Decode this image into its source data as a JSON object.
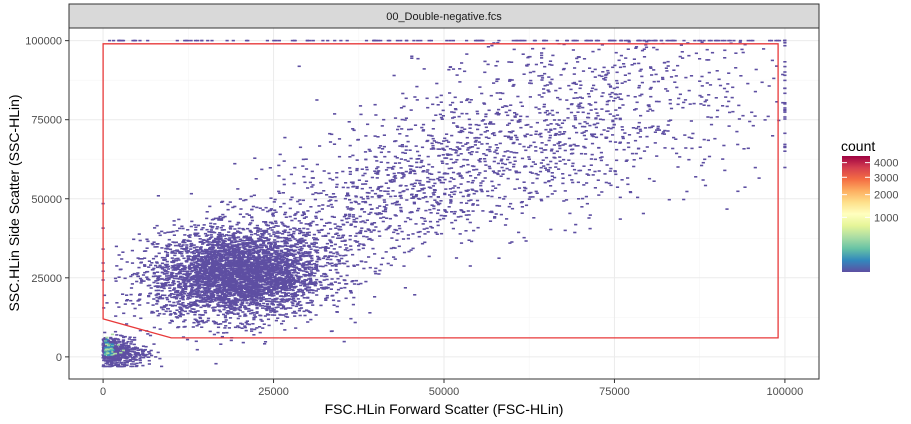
{
  "chart_data": {
    "type": "heatmap",
    "panel_title": "00_Double-negative.fcs",
    "xlabel": "FSC.HLin Forward Scatter (FSC-HLin)",
    "ylabel": "SSC.HLin Side Scatter (SSC-HLin)",
    "xlim": [
      -5000,
      105000
    ],
    "ylim": [
      -7000,
      104000
    ],
    "x_ticks": [
      0,
      25000,
      50000,
      75000,
      100000
    ],
    "x_tick_labels": [
      "0",
      "25000",
      "50000",
      "75000",
      "100000"
    ],
    "y_ticks": [
      0,
      25000,
      50000,
      75000,
      100000
    ],
    "y_tick_labels": [
      "0",
      "25000",
      "50000",
      "75000",
      "100000"
    ],
    "grid": true,
    "legend": {
      "title": "count",
      "position": "right",
      "breaks": [
        1000,
        2000,
        3000,
        4000
      ],
      "break_labels": [
        "1000",
        "2000",
        "3000",
        "4000"
      ],
      "min": 1,
      "max": 4500,
      "colors": [
        "#5e4fa2",
        "#3288bd",
        "#66c2a5",
        "#abdda4",
        "#e6f598",
        "#ffffbf",
        "#fee08b",
        "#fdae61",
        "#f46d43",
        "#d53e4f",
        "#9e0142"
      ]
    },
    "gate": {
      "color": "#e8393a",
      "vertices": [
        [
          0,
          99000
        ],
        [
          99000,
          99000
        ],
        [
          99000,
          6000
        ],
        [
          10000,
          6000
        ],
        [
          0,
          12000
        ]
      ]
    },
    "density": {
      "main_cluster": {
        "center": [
          20000,
          26000
        ],
        "spread": [
          6000,
          7000
        ],
        "count": 3600
      },
      "diagonal_trend": {
        "from": [
          8000,
          18000
        ],
        "to": [
          85000,
          90000
        ],
        "width": 9000,
        "count": 2600
      },
      "origin_cluster": {
        "center": [
          1500,
          1500
        ],
        "spread": [
          2500,
          2500
        ],
        "count": 500
      },
      "saturation_row": {
        "y": 100000,
        "x_range": [
          0,
          100000
        ],
        "count": 110
      }
    },
    "colors": {
      "panel_strip_bg": "#d9d9d9",
      "grid_major": "#ebebeb",
      "grid_minor": "#f5f5f5",
      "frame": "#333333",
      "low_density": "#5e4fa2"
    }
  }
}
